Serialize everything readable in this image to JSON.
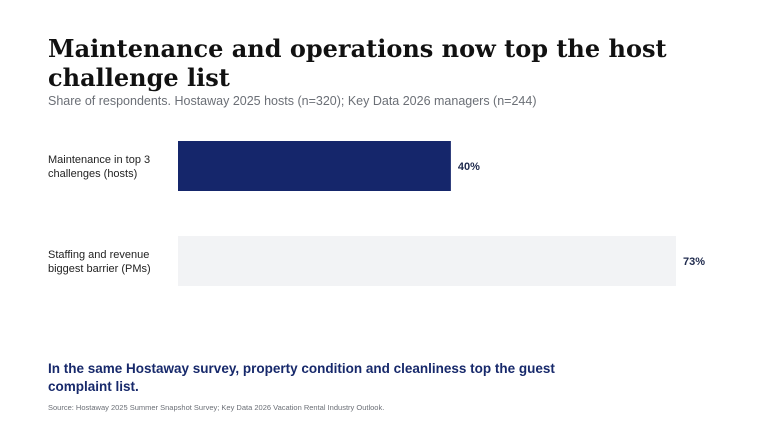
{
  "header": {
    "title": "Maintenance and operations now top the host challenge list",
    "subtitle": "Share of respondents. Hostaway 2025 hosts (n=320); Key Data 2026 managers (n=244)"
  },
  "chart_data": {
    "type": "bar",
    "orientation": "horizontal",
    "categories": [
      [
        "Maintenance in top 3",
        "challenges (hosts)"
      ],
      [
        "Staffing and revenue",
        "biggest barrier (PMs)"
      ]
    ],
    "values": [
      40,
      73
    ],
    "value_labels": [
      "40%",
      "73%"
    ],
    "xlim": [
      0,
      73
    ],
    "colors": [
      "#15266b",
      "#f2f3f5"
    ],
    "grid": false,
    "legend": "none"
  },
  "footer": {
    "callout": "In the same Hostaway survey, property condition and cleanliness top the guest complaint list.",
    "source": "Source: Hostaway 2025 Summer Snapshot Survey; Key Data 2026 Vacation Rental Industry Outlook."
  }
}
